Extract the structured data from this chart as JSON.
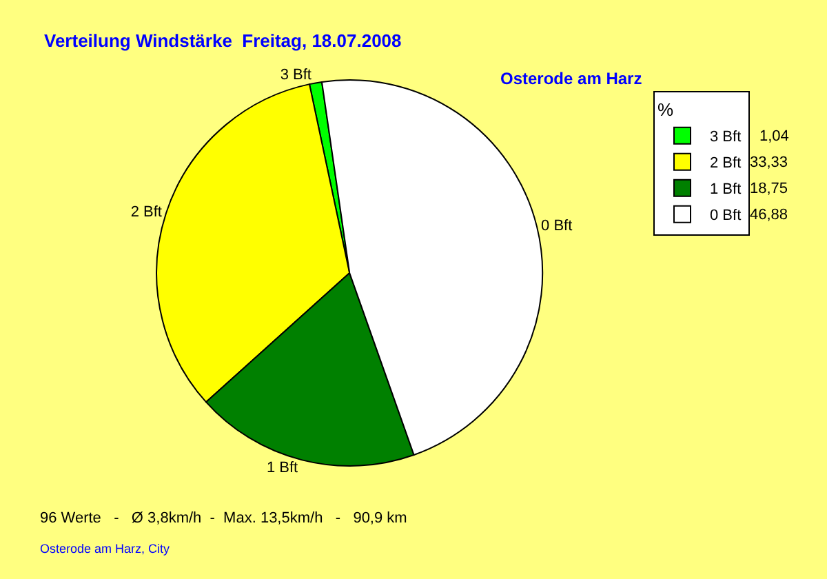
{
  "chart_data": {
    "type": "pie",
    "title": "Verteilung Windstärke  Freitag, 18.07.2008",
    "subtitle": "Osterode am Harz",
    "legend_title": "%",
    "legend": "top right",
    "categories": [
      "3 Bft",
      "2 Bft",
      "1 Bft",
      "0 Bft"
    ],
    "values": [
      1.04,
      33.33,
      18.75,
      46.88
    ],
    "value_labels": [
      "1,04",
      "33,33",
      "18,75",
      "46,88"
    ],
    "colors": [
      "#00ff00",
      "#ffff00",
      "#008000",
      "#ffffff"
    ],
    "annotations": [
      "96 Werte   -   Ø 3,8km/h  -  Max. 13,5km/h   -   90,9 km",
      "Osterode am Harz, City"
    ]
  }
}
